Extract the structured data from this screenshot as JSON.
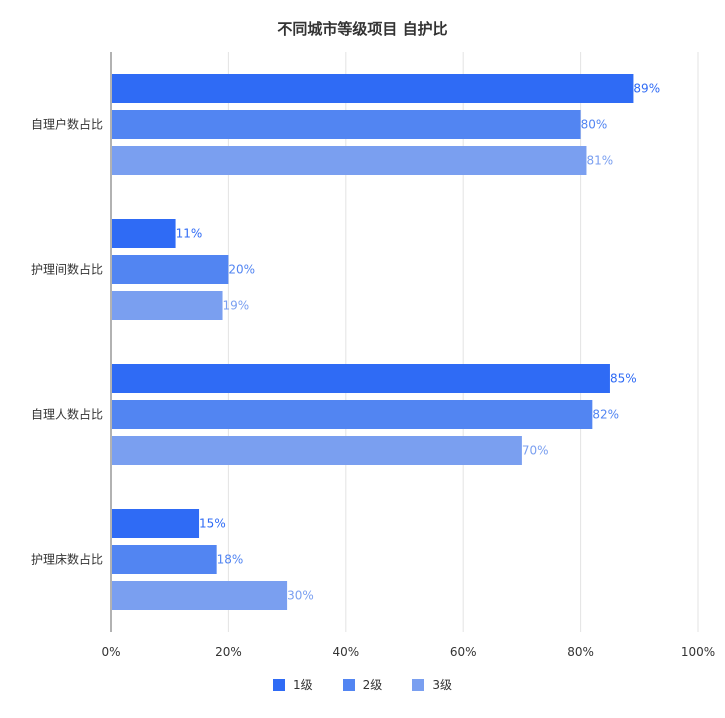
{
  "chart_data": {
    "type": "bar",
    "orientation": "horizontal",
    "title": "不同城市等级项目 自护比",
    "categories": [
      "自理户数占比",
      "护理间数占比",
      "自理人数占比",
      "护理床数占比"
    ],
    "series": [
      {
        "name": "1级",
        "values": [
          89,
          11,
          85,
          15
        ],
        "labels": [
          "89%",
          "11%",
          "85%",
          "15%"
        ],
        "color": "#2f6bf5"
      },
      {
        "name": "2级",
        "values": [
          80,
          20,
          82,
          18
        ],
        "labels": [
          "80%",
          "20%",
          "82%",
          "18%"
        ],
        "color": "#5285f2"
      },
      {
        "name": "3级",
        "values": [
          81,
          19,
          70,
          30
        ],
        "labels": [
          "81%",
          "19%",
          "70%",
          "30%"
        ],
        "color": "#7a9ff0"
      }
    ],
    "xlim": [
      0,
      100
    ],
    "xticks": [
      "0%",
      "20%",
      "40%",
      "60%",
      "80%",
      "100%"
    ],
    "grid": true,
    "legend_position": "bottom"
  }
}
